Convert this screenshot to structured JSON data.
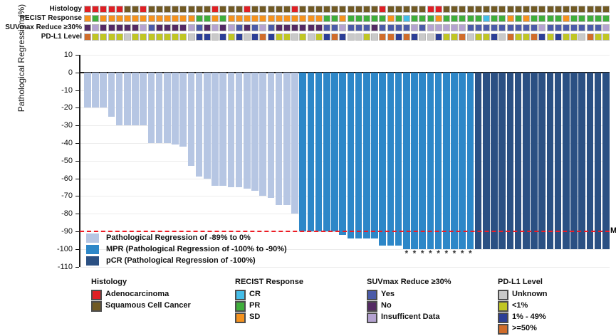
{
  "colors": {
    "bar_light": "#b6c6e3",
    "bar_mpr": "#2d87c8",
    "bar_pcr": "#2b5083",
    "mpr_line_red": "#ed1c24",
    "adenocarcinoma": "#df1f24",
    "squamous": "#715a24",
    "recist_cr": "#44bde8",
    "recist_pr": "#3fae3b",
    "recist_sd": "#f5921e",
    "suv_yes": "#4b5ba8",
    "suv_no": "#542a64",
    "suv_insufficient": "#b4a2d0",
    "pdl1_unknown": "#c9c9c9",
    "pdl1_lt1": "#c0c623",
    "pdl1_1_49": "#2b3e96",
    "pdl1_ge50": "#d06c2a"
  },
  "annotation_tracks": [
    {
      "label": "Histology",
      "colormap": {
        "A": "adenocarcinoma",
        "S": "squamous"
      },
      "values": [
        "A",
        "A",
        "A",
        "A",
        "A",
        "S",
        "S",
        "A",
        "S",
        "S",
        "S",
        "S",
        "S",
        "S",
        "S",
        "S",
        "A",
        "S",
        "S",
        "S",
        "A",
        "S",
        "S",
        "S",
        "S",
        "S",
        "A",
        "S",
        "S",
        "S",
        "S",
        "S",
        "S",
        "S",
        "S",
        "S",
        "S",
        "A",
        "S",
        "S",
        "S",
        "S",
        "S",
        "A",
        "A",
        "S",
        "S",
        "S",
        "S",
        "S",
        "S",
        "S",
        "S",
        "S",
        "S",
        "S",
        "S",
        "S",
        "S",
        "S",
        "S",
        "S",
        "S",
        "S",
        "S",
        "S"
      ]
    },
    {
      "label": "RECIST Response",
      "colormap": {
        "SD": "recist_sd",
        "PR": "recist_pr",
        "CR": "recist_cr"
      },
      "values": [
        "SD",
        "PR",
        "SD",
        "SD",
        "SD",
        "SD",
        "SD",
        "SD",
        "SD",
        "SD",
        "SD",
        "SD",
        "SD",
        "SD",
        "PR",
        "PR",
        "SD",
        "PR",
        "SD",
        "SD",
        "SD",
        "SD",
        "SD",
        "SD",
        "SD",
        "SD",
        "SD",
        "SD",
        "SD",
        "SD",
        "PR",
        "PR",
        "SD",
        "PR",
        "PR",
        "PR",
        "PR",
        "PR",
        "SD",
        "PR",
        "CR",
        "PR",
        "PR",
        "PR",
        "SD",
        "PR",
        "PR",
        "PR",
        "PR",
        "PR",
        "CR",
        "PR",
        "PR",
        "SD",
        "PR",
        "SD",
        "PR",
        "PR",
        "PR",
        "PR",
        "SD",
        "PR",
        "PR",
        "PR",
        "PR",
        "PR"
      ]
    },
    {
      "label": "SUVmax Reduce ≥30%",
      "colormap": {
        "Y": "suv_yes",
        "N": "suv_no",
        "I": "suv_insufficient"
      },
      "values": [
        "N",
        "I",
        "N",
        "N",
        "N",
        "N",
        "N",
        "I",
        "Y",
        "N",
        "N",
        "N",
        "N",
        "I",
        "Y",
        "N",
        "I",
        "N",
        "I",
        "Y",
        "N",
        "Y",
        "I",
        "Y",
        "N",
        "N",
        "N",
        "N",
        "N",
        "N",
        "Y",
        "Y",
        "I",
        "Y",
        "Y",
        "Y",
        "N",
        "Y",
        "Y",
        "Y",
        "Y",
        "I",
        "Y",
        "I",
        "I",
        "I",
        "I",
        "I",
        "Y",
        "Y",
        "Y",
        "Y",
        "Y",
        "Y",
        "Y",
        "Y",
        "Y",
        "I",
        "Y",
        "Y",
        "Y",
        "Y",
        "Y",
        "Y",
        "Y",
        "I"
      ]
    },
    {
      "label": "PD-L1 Level",
      "colormap": {
        "U": "pdl1_unknown",
        "L": "pdl1_lt1",
        "M": "pdl1_1_49",
        "H": "pdl1_ge50"
      },
      "values": [
        "H",
        "L",
        "L",
        "L",
        "L",
        "U",
        "L",
        "L",
        "L",
        "L",
        "L",
        "L",
        "L",
        "U",
        "M",
        "M",
        "U",
        "M",
        "L",
        "M",
        "U",
        "M",
        "H",
        "M",
        "L",
        "L",
        "U",
        "L",
        "U",
        "L",
        "M",
        "H",
        "M",
        "U",
        "U",
        "L",
        "U",
        "H",
        "H",
        "M",
        "H",
        "M",
        "U",
        "U",
        "M",
        "L",
        "L",
        "H",
        "U",
        "L",
        "L",
        "M",
        "U",
        "H",
        "L",
        "L",
        "H",
        "M",
        "L",
        "M",
        "L",
        "L",
        "U",
        "H",
        "L",
        "L"
      ]
    }
  ],
  "chart_data": {
    "type": "bar",
    "title": "",
    "xlabel": "",
    "ylabel": "Pathological Regression (%)",
    "ylim": [
      -110,
      10
    ],
    "yticks": [
      10,
      0,
      -10,
      -20,
      -30,
      -40,
      -50,
      -60,
      -70,
      -80,
      -90,
      -100,
      -110
    ],
    "grid": "horizontal",
    "n_patients": 66,
    "values": [
      -20,
      -20,
      -20,
      -25,
      -30,
      -30,
      -30,
      -30,
      -40,
      -40,
      -40,
      -41,
      -42,
      -53,
      -59,
      -60,
      -64,
      -64,
      -65,
      -65,
      -66,
      -67,
      -70,
      -71,
      -75,
      -75,
      -80,
      -90,
      -90,
      -90,
      -90,
      -90,
      -92,
      -94,
      -94,
      -94,
      -94,
      -98,
      -98,
      -98,
      -100,
      -100,
      -100,
      -100,
      -100,
      -100,
      -100,
      -100,
      -100,
      -100,
      -100,
      -100,
      -100,
      -100,
      -100,
      -100,
      -100,
      -100,
      -100,
      -100,
      -100,
      -100,
      -100,
      -100,
      -100,
      -100
    ],
    "groups": {
      "light": [
        1,
        27
      ],
      "mpr": [
        28,
        49
      ],
      "pcr": [
        50,
        66
      ]
    },
    "group_colors": {
      "light": "bar_light",
      "mpr": "bar_mpr",
      "pcr": "bar_pcr"
    },
    "legend": [
      {
        "key": "light",
        "label": "Pathological Regression of -89% to 0%"
      },
      {
        "key": "mpr",
        "label": "MPR (Pathological Regression of -100% to -90%)"
      },
      {
        "key": "pcr",
        "label": "pCR (Pathological Regression of -100%)"
      }
    ],
    "mpr_line": {
      "value": -90,
      "label": "MPR"
    },
    "asterisk_columns": [
      41,
      42,
      43,
      44,
      45,
      46,
      47,
      48,
      49
    ],
    "asterisk_symbol": "*"
  },
  "bottom_legend": [
    {
      "title": "Histology",
      "items": [
        {
          "label": "Adenocarcinoma",
          "color": "adenocarcinoma"
        },
        {
          "label": "Squamous Cell Cancer",
          "color": "squamous"
        }
      ]
    },
    {
      "title": "RECIST Response",
      "items": [
        {
          "label": "CR",
          "color": "recist_cr"
        },
        {
          "label": "PR",
          "color": "recist_pr"
        },
        {
          "label": "SD",
          "color": "recist_sd"
        }
      ]
    },
    {
      "title": "SUVmax Reduce ≥30%",
      "items": [
        {
          "label": "Yes",
          "color": "suv_yes"
        },
        {
          "label": "No",
          "color": "suv_no"
        },
        {
          "label": "Insufficent Data",
          "color": "suv_insufficient"
        }
      ]
    },
    {
      "title": "PD-L1 Level",
      "items": [
        {
          "label": "Unknown",
          "color": "pdl1_unknown"
        },
        {
          "label": "<1%",
          "color": "pdl1_lt1"
        },
        {
          "label": "1% - 49%",
          "color": "pdl1_1_49"
        },
        {
          "label": ">=50%",
          "color": "pdl1_ge50"
        }
      ]
    }
  ]
}
